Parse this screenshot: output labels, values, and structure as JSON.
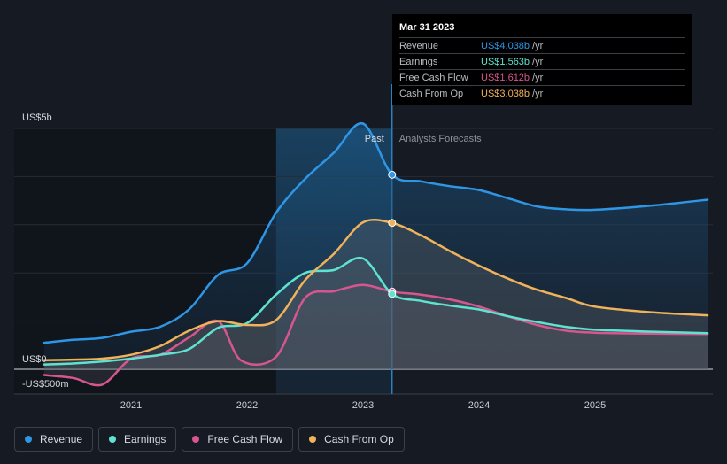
{
  "tooltip": {
    "date": "Mar 31 2023",
    "rows": [
      {
        "name": "Revenue",
        "value": "US$4.038b",
        "unit": "/yr",
        "color": "#2f96e6"
      },
      {
        "name": "Earnings",
        "value": "US$1.563b",
        "unit": "/yr",
        "color": "#5fe2cf"
      },
      {
        "name": "Free Cash Flow",
        "value": "US$1.612b",
        "unit": "/yr",
        "color": "#d6568f"
      },
      {
        "name": "Cash From Op",
        "value": "US$3.038b",
        "unit": "/yr",
        "color": "#f0b25b"
      }
    ]
  },
  "legend": [
    {
      "label": "Revenue",
      "color": "#2f96e6"
    },
    {
      "label": "Earnings",
      "color": "#5fe2cf"
    },
    {
      "label": "Free Cash Flow",
      "color": "#d6568f"
    },
    {
      "label": "Cash From Op",
      "color": "#f0b25b"
    }
  ],
  "chart_data": {
    "type": "line",
    "title": "",
    "ylim": [
      -0.5,
      5.3
    ],
    "xlim": [
      2020.2,
      2025.97
    ],
    "y_labels": [
      {
        "value": 5,
        "text": "US$5b"
      },
      {
        "value": 0,
        "text": "US$0"
      },
      {
        "value": -0.5,
        "text": "-US$500m"
      }
    ],
    "x_ticks": [
      {
        "value": 2021,
        "label": "2021"
      },
      {
        "value": 2022,
        "label": "2022"
      },
      {
        "value": 2023,
        "label": "2023"
      },
      {
        "value": 2024,
        "label": "2024"
      },
      {
        "value": 2025,
        "label": "2025"
      }
    ],
    "past_label": "Past",
    "forecast_label": "Analysts Forecasts",
    "past_region_start": 2022.25,
    "divider_x": 2023.25,
    "series": [
      {
        "name": "Revenue",
        "color": "#2f96e6",
        "points": [
          [
            2020.25,
            0.55
          ],
          [
            2020.5,
            0.61
          ],
          [
            2020.75,
            0.65
          ],
          [
            2021,
            0.78
          ],
          [
            2021.25,
            0.88
          ],
          [
            2021.5,
            1.24
          ],
          [
            2021.75,
            1.96
          ],
          [
            2022,
            2.2
          ],
          [
            2022.25,
            3.25
          ],
          [
            2022.5,
            3.95
          ],
          [
            2022.75,
            4.5
          ],
          [
            2023,
            5.1
          ],
          [
            2023.25,
            4.038
          ],
          [
            2023.5,
            3.9
          ],
          [
            2023.75,
            3.8
          ],
          [
            2024,
            3.72
          ],
          [
            2024.25,
            3.55
          ],
          [
            2024.5,
            3.38
          ],
          [
            2024.75,
            3.32
          ],
          [
            2025,
            3.31
          ],
          [
            2025.5,
            3.4
          ],
          [
            2025.97,
            3.52
          ]
        ]
      },
      {
        "name": "Earnings",
        "color": "#5fe2cf",
        "points": [
          [
            2020.25,
            0.1
          ],
          [
            2020.5,
            0.12
          ],
          [
            2020.75,
            0.16
          ],
          [
            2021,
            0.22
          ],
          [
            2021.25,
            0.3
          ],
          [
            2021.5,
            0.42
          ],
          [
            2021.75,
            0.86
          ],
          [
            2022,
            0.96
          ],
          [
            2022.25,
            1.55
          ],
          [
            2022.5,
            2.0
          ],
          [
            2022.75,
            2.06
          ],
          [
            2023,
            2.3
          ],
          [
            2023.25,
            1.563
          ],
          [
            2023.5,
            1.42
          ],
          [
            2023.75,
            1.32
          ],
          [
            2024,
            1.24
          ],
          [
            2024.25,
            1.1
          ],
          [
            2024.5,
            0.98
          ],
          [
            2024.75,
            0.88
          ],
          [
            2025,
            0.82
          ],
          [
            2025.5,
            0.78
          ],
          [
            2025.97,
            0.75
          ]
        ]
      },
      {
        "name": "Free Cash Flow",
        "color": "#d6568f",
        "points": [
          [
            2020.25,
            -0.12
          ],
          [
            2020.5,
            -0.18
          ],
          [
            2020.75,
            -0.32
          ],
          [
            2021,
            0.22
          ],
          [
            2021.25,
            0.3
          ],
          [
            2021.5,
            0.66
          ],
          [
            2021.75,
            1.0
          ],
          [
            2021.95,
            0.18
          ],
          [
            2022.25,
            0.26
          ],
          [
            2022.5,
            1.48
          ],
          [
            2022.75,
            1.62
          ],
          [
            2023,
            1.75
          ],
          [
            2023.25,
            1.612
          ],
          [
            2023.5,
            1.55
          ],
          [
            2023.75,
            1.45
          ],
          [
            2024,
            1.3
          ],
          [
            2024.25,
            1.1
          ],
          [
            2024.5,
            0.92
          ],
          [
            2024.75,
            0.8
          ],
          [
            2025,
            0.76
          ],
          [
            2025.5,
            0.74
          ],
          [
            2025.97,
            0.73
          ]
        ]
      },
      {
        "name": "Cash From Op",
        "color": "#f0b25b",
        "points": [
          [
            2020.25,
            0.19
          ],
          [
            2020.5,
            0.2
          ],
          [
            2020.75,
            0.22
          ],
          [
            2021,
            0.3
          ],
          [
            2021.25,
            0.48
          ],
          [
            2021.5,
            0.8
          ],
          [
            2021.75,
            1.0
          ],
          [
            2022,
            0.92
          ],
          [
            2022.25,
            1.02
          ],
          [
            2022.5,
            1.85
          ],
          [
            2022.75,
            2.4
          ],
          [
            2023,
            3.05
          ],
          [
            2023.25,
            3.038
          ],
          [
            2023.5,
            2.78
          ],
          [
            2023.75,
            2.45
          ],
          [
            2024,
            2.15
          ],
          [
            2024.25,
            1.88
          ],
          [
            2024.5,
            1.65
          ],
          [
            2024.75,
            1.48
          ],
          [
            2025,
            1.3
          ],
          [
            2025.5,
            1.18
          ],
          [
            2025.97,
            1.12
          ]
        ]
      }
    ]
  }
}
